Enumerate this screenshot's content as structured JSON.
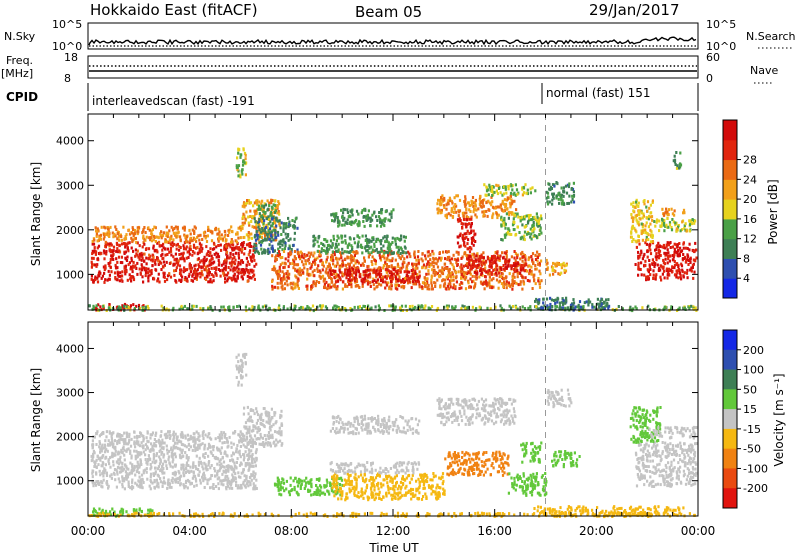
{
  "header": {
    "station": "Hokkaido East (fitACF)",
    "beam": "Beam 05",
    "date": "29/Jan/2017"
  },
  "aux_panels": {
    "nsky_label": "N.Sky",
    "nsky_ticks": [
      "10^5",
      "10^0"
    ],
    "nsearch_label": "N.Search",
    "nsearch_ticks": [
      "10^5",
      "10^0"
    ],
    "freq_label": "Freq.",
    "freq_unit": "[MHz]",
    "freq_ticks": [
      "18",
      "8"
    ],
    "nave_label": "Nave",
    "nave_ticks": [
      "60",
      "0"
    ],
    "cpid_label": "CPID",
    "cpid_segments": [
      {
        "text": "interleavedscan (fast) -191",
        "start_hour": 0
      },
      {
        "text": "normal (fast) 151",
        "start_hour": 18
      }
    ]
  },
  "chart_data": [
    {
      "type": "heatmap",
      "title": "",
      "xlabel": "Time UT",
      "ylabel": "Slant Range [km]",
      "x_ticks": [
        "00:00",
        "04:00",
        "08:00",
        "12:00",
        "16:00",
        "20:00",
        "00:00"
      ],
      "x_tick_hours": [
        0,
        4,
        8,
        12,
        16,
        20,
        24
      ],
      "xlim_hours": [
        0,
        24
      ],
      "y_ticks": [
        1000,
        2000,
        3000,
        4000
      ],
      "ylim": [
        200,
        4600
      ],
      "marker_hour": 18,
      "colorbar": {
        "label": "Power [dB]",
        "ticks": [
          "4",
          "8",
          "12",
          "16",
          "20",
          "24",
          "28"
        ],
        "colors": [
          "#1428e6",
          "#2e4fb0",
          "#3e7f55",
          "#4aa046",
          "#e6d21e",
          "#f2a01a",
          "#ea6a14",
          "#e1250e",
          "#d20a0a"
        ]
      },
      "regions": [
        {
          "x": [
            0.1,
            6.6
          ],
          "y": [
            850,
            1750
          ],
          "v": 26
        },
        {
          "x": [
            0.1,
            6.0
          ],
          "y": [
            1750,
            2100
          ],
          "v": 20
        },
        {
          "x": [
            6.0,
            7.5
          ],
          "y": [
            1800,
            2700
          ],
          "v": 18
        },
        {
          "x": [
            6.6,
            7.4
          ],
          "y": [
            2300,
            2600
          ],
          "v": 10
        },
        {
          "x": [
            5.8,
            6.2
          ],
          "y": [
            3200,
            3900
          ],
          "v": 14
        },
        {
          "x": [
            6.5,
            8.2
          ],
          "y": [
            1500,
            2300
          ],
          "v": 8
        },
        {
          "x": [
            0.1,
            2.2
          ],
          "y": [
            230,
            360
          ],
          "v": 27
        },
        {
          "x": [
            0.0,
            23.9
          ],
          "y": [
            220,
            330
          ],
          "v": 12
        },
        {
          "x": [
            7.2,
            17.8
          ],
          "y": [
            700,
            1550
          ],
          "v": 22
        },
        {
          "x": [
            9.5,
            13.0
          ],
          "y": [
            850,
            1150
          ],
          "v": 27
        },
        {
          "x": [
            14.8,
            17.2
          ],
          "y": [
            1050,
            1450
          ],
          "v": 26
        },
        {
          "x": [
            8.8,
            12.5
          ],
          "y": [
            1500,
            1900
          ],
          "v": 10
        },
        {
          "x": [
            9.5,
            12.0
          ],
          "y": [
            2100,
            2500
          ],
          "v": 10
        },
        {
          "x": [
            13.7,
            16.8
          ],
          "y": [
            2300,
            2800
          ],
          "v": 20
        },
        {
          "x": [
            14.5,
            15.2
          ],
          "y": [
            1600,
            2300
          ],
          "v": 27
        },
        {
          "x": [
            15.5,
            17.6
          ],
          "y": [
            2800,
            3050
          ],
          "v": 14
        },
        {
          "x": [
            16.2,
            17.8
          ],
          "y": [
            1800,
            2400
          ],
          "v": 12
        },
        {
          "x": [
            18.0,
            19.1
          ],
          "y": [
            2600,
            3100
          ],
          "v": 9
        },
        {
          "x": [
            18.0,
            18.8
          ],
          "y": [
            1000,
            1350
          ],
          "v": 18
        },
        {
          "x": [
            21.5,
            23.9
          ],
          "y": [
            900,
            1750
          ],
          "v": 27
        },
        {
          "x": [
            21.3,
            22.2
          ],
          "y": [
            1750,
            2700
          ],
          "v": 16
        },
        {
          "x": [
            22.2,
            23.9
          ],
          "y": [
            2000,
            2300
          ],
          "v": 14
        },
        {
          "x": [
            22.5,
            23.5
          ],
          "y": [
            2350,
            2500
          ],
          "v": 20
        },
        {
          "x": [
            23.0,
            23.3
          ],
          "y": [
            3400,
            3800
          ],
          "v": 11
        },
        {
          "x": [
            17.5,
            20.5
          ],
          "y": [
            230,
            500
          ],
          "v": 7
        }
      ]
    },
    {
      "type": "heatmap",
      "title": "",
      "xlabel": "Time UT",
      "ylabel": "Slant Range [km]",
      "x_ticks": [
        "00:00",
        "04:00",
        "08:00",
        "12:00",
        "16:00",
        "20:00",
        "00:00"
      ],
      "x_tick_hours": [
        0,
        4,
        8,
        12,
        16,
        20,
        24
      ],
      "xlim_hours": [
        0,
        24
      ],
      "y_ticks": [
        1000,
        2000,
        3000,
        4000
      ],
      "ylim": [
        200,
        4600
      ],
      "marker_hour": 18,
      "colorbar": {
        "label": "Velocity [m s⁻¹]",
        "ticks": [
          "200",
          "100",
          "50",
          "15",
          "-15",
          "-50",
          "-100",
          "-200"
        ],
        "colors": [
          "#1428e6",
          "#2e4fb0",
          "#3e7f55",
          "#62c83a",
          "#c4c4c4",
          "#f5b812",
          "#f08212",
          "#ea4a10",
          "#e1140e"
        ]
      },
      "regions": [
        {
          "x": [
            0.1,
            6.6
          ],
          "y": [
            850,
            1900
          ],
          "v": 0
        },
        {
          "x": [
            0.1,
            6.0
          ],
          "y": [
            1900,
            2150
          ],
          "v": 0
        },
        {
          "x": [
            6.0,
            7.6
          ],
          "y": [
            1800,
            2700
          ],
          "v": 0
        },
        {
          "x": [
            5.8,
            6.2
          ],
          "y": [
            3200,
            3900
          ],
          "v": 0
        },
        {
          "x": [
            0.1,
            2.5
          ],
          "y": [
            230,
            400
          ],
          "v": 40
        },
        {
          "x": [
            7.3,
            10.0
          ],
          "y": [
            700,
            1100
          ],
          "v": 40
        },
        {
          "x": [
            9.5,
            14.0
          ],
          "y": [
            600,
            1200
          ],
          "v": -40
        },
        {
          "x": [
            9.5,
            13.0
          ],
          "y": [
            1200,
            1450
          ],
          "v": 0
        },
        {
          "x": [
            9.5,
            13.0
          ],
          "y": [
            2100,
            2500
          ],
          "v": 0
        },
        {
          "x": [
            13.7,
            16.8
          ],
          "y": [
            2300,
            2900
          ],
          "v": 0
        },
        {
          "x": [
            14.0,
            16.5
          ],
          "y": [
            1150,
            1700
          ],
          "v": -80
        },
        {
          "x": [
            16.5,
            18.0
          ],
          "y": [
            700,
            1200
          ],
          "v": 40
        },
        {
          "x": [
            17.0,
            17.8
          ],
          "y": [
            1450,
            1900
          ],
          "v": 40
        },
        {
          "x": [
            18.2,
            19.3
          ],
          "y": [
            1350,
            1700
          ],
          "v": 40
        },
        {
          "x": [
            18.0,
            19.0
          ],
          "y": [
            2700,
            3100
          ],
          "v": 0
        },
        {
          "x": [
            21.5,
            23.9
          ],
          "y": [
            900,
            1900
          ],
          "v": 0
        },
        {
          "x": [
            21.3,
            22.5
          ],
          "y": [
            1900,
            2700
          ],
          "v": 30
        },
        {
          "x": [
            22.0,
            23.9
          ],
          "y": [
            2000,
            2250
          ],
          "v": 0
        },
        {
          "x": [
            17.5,
            23.5
          ],
          "y": [
            230,
            450
          ],
          "v": -40
        },
        {
          "x": [
            0.0,
            23.9
          ],
          "y": [
            220,
            300
          ],
          "v": -30
        }
      ]
    }
  ]
}
